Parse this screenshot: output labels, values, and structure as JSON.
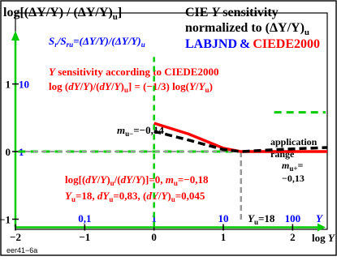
{
  "header": {
    "ylabel": "log[(ΔY/Y) / (ΔY/Y)",
    "ylabel_sub": "u",
    "ylabel_tail": "]",
    "title_line1_a": "CIE ",
    "title_line1_b": "Y",
    "title_line1_c": " sensitivity",
    "title_line2_a": "normalized to (ΔY/Y)",
    "title_line2_sub": "u",
    "title_line3_a": "LABJND",
    "title_line3_b": "&",
    "title_line3_c": "CIEDE2000"
  },
  "annotations": {
    "ratio_a": "S",
    "ratio_a_sub": "r",
    "ratio_b": "/S",
    "ratio_b_sub": "ru",
    "ratio_c": "=(ΔY/Y)/(ΔY/Y)",
    "ratio_c_sub": "u",
    "sens_line1_a": "Y",
    "sens_line1_b": " sensitivity according to CIEDE2000",
    "sens_line2_a": "log (",
    "sens_line2_b": "dY",
    "sens_line2_c": "/",
    "sens_line2_d": "Y",
    "sens_line2_e": ")/(",
    "sens_line2_f": "dY",
    "sens_line2_g": "/",
    "sens_line2_h": "Y",
    "sens_line2_i": ")",
    "sens_line2_j": "u",
    "sens_line2_k": "] = (−1/3) log(",
    "sens_line2_l": "Y",
    "sens_line2_m": "/",
    "sens_line2_n": "Y",
    "sens_line2_o": "u",
    "sens_line2_p": ")",
    "mminus_a": "m",
    "mminus_sub": "u−",
    "mminus_b": "=−0,14",
    "app_line1": "application",
    "app_line2": "range",
    "mplus_a": "m",
    "mplus_sub": "u+",
    "mplus_b": "=",
    "mplus_line2": "−0,13",
    "red_line1_a": "log[(",
    "red_line1_b": "dY",
    "red_line1_c": "/",
    "red_line1_d": "Y",
    "red_line1_e": ")",
    "red_line1_f": "u",
    "red_line1_g": "/(",
    "red_line1_h": "dY",
    "red_line1_i": "/",
    "red_line1_j": "Y",
    "red_line1_k": ")]=0, ",
    "red_line1_l": "m",
    "red_line1_m": "u",
    "red_line1_n": "=−0,18",
    "red_line2_a": "Y",
    "red_line2_b": "u",
    "red_line2_c": "=18, ",
    "red_line2_d": "dY",
    "red_line2_e": "u",
    "red_line2_f": "=0,83, (",
    "red_line2_g": "dY",
    "red_line2_h": "/",
    "red_line2_i": "Y",
    "red_line2_j": ")",
    "red_line2_k": "u",
    "red_line2_l": "=0,045",
    "yu_a": "Y",
    "yu_sub": "u",
    "yu_b": "=18",
    "xaxis_unit_a": "log ",
    "xaxis_unit_b": "Y",
    "y_axis_letter": "Y",
    "footer_code": "eer41−6a"
  },
  "colors": {
    "blue": "#0000ff",
    "red": "#ff0000",
    "green": "#00cc00",
    "magenta": "#cc00cc",
    "grey": "#999999",
    "black": "#000000"
  },
  "chart_data": {
    "type": "line",
    "xlabel": "log Y",
    "ylabel": "log[(ΔY/Y) / (ΔY/Y)u]",
    "xlim": [
      -2,
      2.5
    ],
    "ylim": [
      -1.15,
      2.05
    ],
    "x_ticks": [
      -2,
      -1,
      0,
      1,
      2
    ],
    "x_tick_labels": [
      "−2",
      "−1",
      "0",
      "1",
      "2"
    ],
    "y_ticks": [
      -1,
      0,
      1
    ],
    "y_tick_labels": [
      "−1",
      "0",
      "1"
    ],
    "blue_y_ticks": [
      {
        "y": 1,
        "label": "10"
      },
      {
        "y": 0,
        "label": "1"
      }
    ],
    "blue_x_ticks": [
      {
        "x": -1,
        "label": "0,1"
      },
      {
        "x": 0,
        "label": "1"
      },
      {
        "x": 1,
        "label": "10"
      },
      {
        "x": 2,
        "label": "100"
      }
    ],
    "series": [
      {
        "name": "CIEDE2000",
        "color": "#ff0000",
        "style": "solid",
        "x": [
          0,
          0.5,
          1.0,
          1.255,
          1.5,
          2.0,
          2.5
        ],
        "y": [
          0.42,
          0.26,
          0.05,
          0,
          0,
          0,
          0
        ]
      },
      {
        "name": "LABJND",
        "color": "#000000",
        "style": "dashed",
        "x": [
          0,
          0.5,
          1.0,
          1.255,
          1.6,
          2.0,
          2.5
        ],
        "y": [
          0.3,
          0.17,
          0.03,
          0,
          0.02,
          0.04,
          0.06
        ]
      }
    ],
    "application_range": {
      "x": [
        -2.1,
        2.5
      ],
      "y": 0,
      "color": "#00cc00"
    },
    "top_green": {
      "x": [
        1.5,
        2.5
      ],
      "y": 0.58
    },
    "yu_marker": {
      "x": 1.255,
      "y": [
        0,
        -1.12
      ]
    }
  }
}
